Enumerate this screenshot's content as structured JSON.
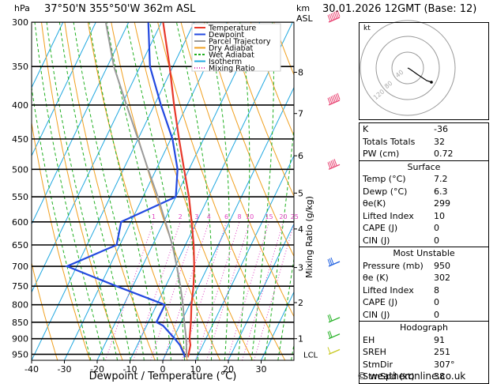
{
  "header": {
    "location": "37°50'N  355°50'W  362m  ASL",
    "date": "30.01.2026  12GMT  (Base: 12)",
    "hpa_label": "hPa",
    "km_label": "km",
    "asl_label": "ASL"
  },
  "chart_data": {
    "type": "skew-t log-p",
    "xlabel": "Dewpoint / Temperature (°C)",
    "ylabel_right": "Mixing Ratio (g/kg)",
    "ylabel_left": "hPa",
    "pressure_levels": [
      300,
      350,
      400,
      450,
      500,
      550,
      600,
      650,
      700,
      750,
      800,
      850,
      900,
      950
    ],
    "temperature_ticks": [
      -40,
      -30,
      -20,
      -10,
      0,
      10,
      20,
      30
    ],
    "temperature_range": [
      -40,
      40
    ],
    "pressure_range": [
      300,
      970
    ],
    "km_ticks": [
      {
        "km": "8",
        "p": 357
      },
      {
        "km": "7",
        "p": 412
      },
      {
        "km": "6",
        "p": 477
      },
      {
        "km": "5",
        "p": 543
      },
      {
        "km": "4",
        "p": 615
      },
      {
        "km": "3",
        "p": 703
      },
      {
        "km": "2",
        "p": 794
      },
      {
        "km": "1",
        "p": 900
      }
    ],
    "lcl_label": "LCL",
    "lcl_pressure": 958,
    "mixing_ratio_labels": [
      "1",
      "2",
      "3",
      "4",
      "6",
      "8",
      "10",
      "15",
      "20",
      "25"
    ],
    "mixing_ratio_values": [
      1,
      2,
      3,
      4,
      6,
      8,
      10,
      15,
      20,
      25
    ],
    "legend": [
      {
        "label": "Temperature",
        "color": "#e8392a",
        "style": "solid"
      },
      {
        "label": "Dewpoint",
        "color": "#2349e0",
        "style": "solid"
      },
      {
        "label": "Parcel Trajectory",
        "color": "#9a9a9a",
        "style": "solid"
      },
      {
        "label": "Dry Adiabat",
        "color": "#f0a020",
        "style": "solid"
      },
      {
        "label": "Wet Adiabat",
        "color": "#20b020",
        "style": "dashed"
      },
      {
        "label": "Isotherm",
        "color": "#20a8e0",
        "style": "solid"
      },
      {
        "label": "Mixing Ratio",
        "color": "#e040c0",
        "style": "dotted"
      }
    ],
    "series": [
      {
        "name": "Temperature",
        "color": "#e8392a",
        "points": [
          [
            960,
            7.2
          ],
          [
            950,
            7.0
          ],
          [
            920,
            6.2
          ],
          [
            900,
            5.0
          ],
          [
            850,
            3.0
          ],
          [
            800,
            0.6
          ],
          [
            750,
            -1.5
          ],
          [
            700,
            -4.2
          ],
          [
            650,
            -7.5
          ],
          [
            600,
            -11.5
          ],
          [
            550,
            -16.0
          ],
          [
            500,
            -21.5
          ],
          [
            450,
            -27.5
          ],
          [
            400,
            -34.0
          ],
          [
            350,
            -41.0
          ],
          [
            300,
            -49.5
          ]
        ]
      },
      {
        "name": "Dewpoint",
        "color": "#2349e0",
        "points": [
          [
            960,
            6.3
          ],
          [
            950,
            5.6
          ],
          [
            920,
            3.0
          ],
          [
            900,
            0.5
          ],
          [
            860,
            -5.0
          ],
          [
            850,
            -7.5
          ],
          [
            800,
            -7.5
          ],
          [
            750,
            -25.0
          ],
          [
            700,
            -43.0
          ],
          [
            650,
            -31.0
          ],
          [
            600,
            -33.0
          ],
          [
            550,
            -20.0
          ],
          [
            500,
            -23.5
          ],
          [
            450,
            -29.5
          ],
          [
            400,
            -38.0
          ],
          [
            350,
            -47.0
          ],
          [
            300,
            -54.0
          ]
        ]
      },
      {
        "name": "Parcel Trajectory",
        "color": "#9a9a9a",
        "points": [
          [
            960,
            7.2
          ],
          [
            950,
            6.4
          ],
          [
            900,
            4.0
          ],
          [
            850,
            1.0
          ],
          [
            800,
            -2.0
          ],
          [
            750,
            -5.5
          ],
          [
            700,
            -9.5
          ],
          [
            650,
            -14.0
          ],
          [
            600,
            -19.5
          ],
          [
            550,
            -25.5
          ],
          [
            500,
            -32.5
          ],
          [
            450,
            -40.0
          ],
          [
            400,
            -48.5
          ],
          [
            350,
            -58.0
          ],
          [
            300,
            -67.0
          ]
        ]
      }
    ],
    "wind_barbs": [
      {
        "p": 300,
        "speed_kt": 90,
        "dir": 290
      },
      {
        "p": 400,
        "speed_kt": 70,
        "dir": 280
      },
      {
        "p": 500,
        "speed_kt": 45,
        "dir": 285
      },
      {
        "p": 700,
        "speed_kt": 25,
        "dir": 300
      },
      {
        "p": 850,
        "speed_kt": 15,
        "dir": 320
      },
      {
        "p": 900,
        "speed_kt": 15,
        "dir": 320
      },
      {
        "p": 950,
        "speed_kt": 10,
        "dir": 330
      }
    ],
    "hodograph": {
      "unit_label": "kt",
      "ring_labels": [
        "40",
        "80",
        "120"
      ],
      "points": [
        [
          0,
          0
        ],
        [
          2,
          -1
        ],
        [
          5,
          -3
        ],
        [
          12,
          -8
        ],
        [
          24,
          -16
        ],
        [
          30,
          -18
        ]
      ]
    }
  },
  "indices": {
    "rows": [
      {
        "key": "K",
        "value": "-36"
      },
      {
        "key": "Totals Totals",
        "value": "32"
      },
      {
        "key": "PW (cm)",
        "value": "0.72"
      }
    ]
  },
  "surface": {
    "title": "Surface",
    "rows": [
      {
        "key": "Temp (°C)",
        "value": "7.2"
      },
      {
        "key": "Dewp (°C)",
        "value": "6.3"
      },
      {
        "key": "θe(K)",
        "value": "299"
      },
      {
        "key": "Lifted Index",
        "value": "10"
      },
      {
        "key": "CAPE (J)",
        "value": "0"
      },
      {
        "key": "CIN (J)",
        "value": "0"
      }
    ]
  },
  "unstable": {
    "title": "Most Unstable",
    "rows": [
      {
        "key": "Pressure (mb)",
        "value": "950"
      },
      {
        "key": "θe (K)",
        "value": "302"
      },
      {
        "key": "Lifted Index",
        "value": "8"
      },
      {
        "key": "CAPE (J)",
        "value": "0"
      },
      {
        "key": "CIN (J)",
        "value": "0"
      }
    ]
  },
  "hodograph_table": {
    "title": "Hodograph",
    "rows": [
      {
        "key": "EH",
        "value": "91"
      },
      {
        "key": "SREH",
        "value": "251"
      },
      {
        "key": "StmDir",
        "value": "307°"
      },
      {
        "key": "StmSpd (kt)",
        "value": "38"
      }
    ]
  },
  "credit": "© weatheronline.co.uk"
}
